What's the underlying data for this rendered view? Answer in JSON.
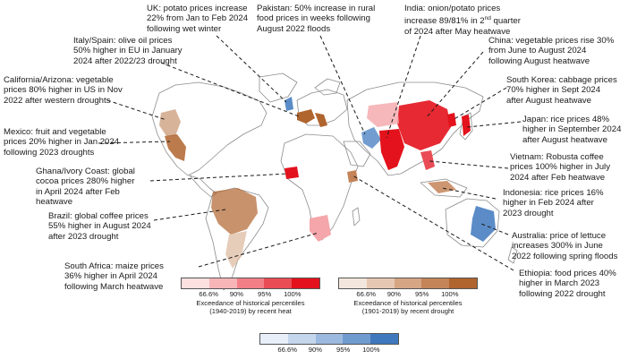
{
  "annotations": [
    {
      "id": "uk",
      "lines": [
        "UK: potato prices increase",
        "22% from Jan to Feb 2024",
        "following wet winter"
      ]
    },
    {
      "id": "pakistan",
      "lines": [
        "Pakistan: 50% increase in rural",
        "food prices in weeks following",
        "August 2022 floods"
      ]
    },
    {
      "id": "india",
      "lines": [
        "India: onion/potato prices",
        "increase 89/81% in 2nd quarter",
        "of 2024 after May heatwave"
      ]
    },
    {
      "id": "italy",
      "lines": [
        "Italy/Spain: olive oil prices",
        "50% higher in EU in January",
        "2024 after 2022/23 drought"
      ]
    },
    {
      "id": "china",
      "lines": [
        "China: vegetable prices rise 30%",
        "from June to August 2024",
        "following August heatwave"
      ]
    },
    {
      "id": "california",
      "lines": [
        "California/Arizona: vegetable",
        "prices 80% higher in US in Nov",
        "2022 after western droughts"
      ]
    },
    {
      "id": "korea",
      "lines": [
        "South Korea: cabbage prices",
        "70% higher in Sept 2024",
        "after August heatwave"
      ]
    },
    {
      "id": "japan",
      "lines": [
        "Japan: rice prices 48%",
        "higher in September 2024",
        "after August heatwave"
      ]
    },
    {
      "id": "mexico",
      "lines": [
        "Mexico: fruit and vegetable",
        "prices 20% higher in Jan 2024",
        "following 2023 droughts"
      ]
    },
    {
      "id": "vietnam",
      "lines": [
        "Vietnam: Robusta coffee",
        "prices 100% higher in July",
        "2024 after Feb heatwave"
      ]
    },
    {
      "id": "ghana",
      "lines": [
        "Ghana/Ivory Coast: global",
        "cocoa prices 280% higher",
        "in April 2024 after Feb",
        "heatwave"
      ]
    },
    {
      "id": "indonesia",
      "lines": [
        "Indonesia: rice prices 16%",
        "higher in Feb 2024 after",
        "2023 drought"
      ]
    },
    {
      "id": "brazil",
      "lines": [
        "Brazil: global coffee prices",
        "55% higher in August 2024",
        "after 2023 drought"
      ]
    },
    {
      "id": "australia",
      "lines": [
        "Australia: price of lettuce",
        "increases 300% in June",
        "2022 following spring floods"
      ]
    },
    {
      "id": "southafrica",
      "lines": [
        "South Africa: maize prices",
        "36% higher in April 2024",
        "following March heatwave"
      ]
    },
    {
      "id": "ethiopia",
      "lines": [
        "Ethiopia: food prices 40%",
        "higher in March 2023",
        "following 2022 drought"
      ]
    }
  ],
  "legends": {
    "heat": {
      "ticks": [
        "66.6%",
        "90%",
        "95%",
        "100%"
      ],
      "caption": [
        "Exceedance of historical percentiles",
        "(1940-2019) by recent heat"
      ],
      "colors": [
        "#fde0e0",
        "#f8b5b8",
        "#f27f86",
        "#ea4c55",
        "#e3121c"
      ]
    },
    "drought": {
      "ticks": [
        "66.6%",
        "90%",
        "95%",
        "100%"
      ],
      "caption": [
        "Exceedance of historical percentiles",
        "(1901-2019) by recent drought"
      ],
      "colors": [
        "#f3e6dc",
        "#e6c8b2",
        "#d6a584",
        "#c48458",
        "#b0642e"
      ]
    },
    "wet": {
      "ticks": [
        "66.6%",
        "90%",
        "95%",
        "100%"
      ],
      "colors": [
        "#e8eff8",
        "#c4d6ec",
        "#9cbadf",
        "#6f9bcf",
        "#3f78bd"
      ]
    }
  },
  "colors": {
    "land_outline": "#9a9a9a",
    "heat_strong": "#e3121c",
    "heat_light": "#f4a6aa",
    "drought": "#b0642e",
    "drought_light": "#dcb89c",
    "wet": "#5b8cc8"
  }
}
